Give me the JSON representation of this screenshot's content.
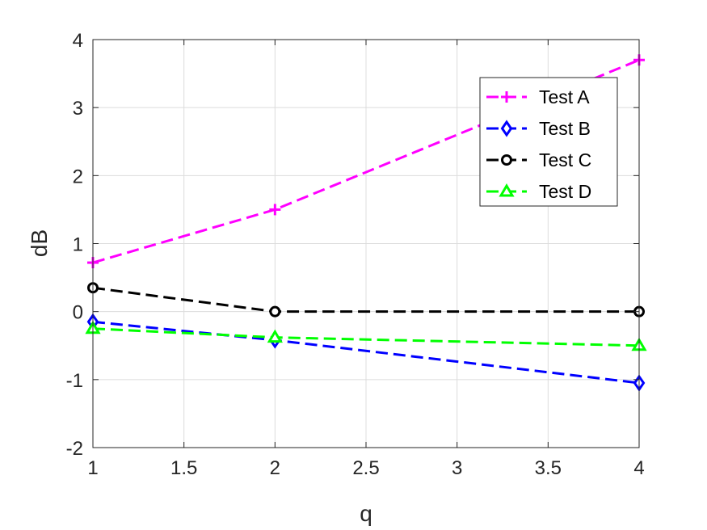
{
  "chart_data": {
    "type": "line",
    "title": "",
    "xlabel": "q",
    "ylabel": "dB",
    "xlim": [
      1,
      4
    ],
    "ylim": [
      -2,
      4
    ],
    "x_ticks": [
      "1",
      "1.5",
      "2",
      "2.5",
      "3",
      "3.5",
      "4"
    ],
    "y_ticks": [
      "-2",
      "-1",
      "0",
      "1",
      "2",
      "3",
      "4"
    ],
    "grid": true,
    "legend_position": "top-right",
    "x": [
      1,
      2,
      4
    ],
    "series": [
      {
        "name": "Test A",
        "values": [
          0.72,
          1.5,
          3.7
        ],
        "color": "#ff00ff",
        "marker": "plus"
      },
      {
        "name": "Test B",
        "values": [
          -0.15,
          -0.42,
          -1.05
        ],
        "color": "#0000ff",
        "marker": "diamond"
      },
      {
        "name": "Test C",
        "values": [
          0.35,
          0.0,
          0.0
        ],
        "color": "#000000",
        "marker": "circle"
      },
      {
        "name": "Test D",
        "values": [
          -0.25,
          -0.38,
          -0.5
        ],
        "color": "#00ff00",
        "marker": "triangle"
      }
    ]
  }
}
